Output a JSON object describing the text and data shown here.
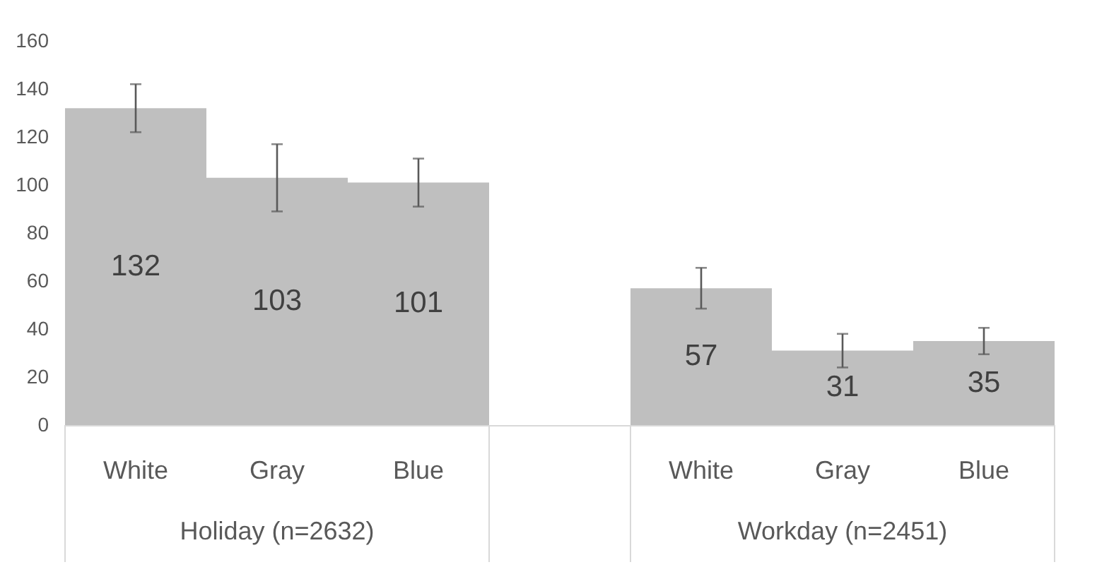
{
  "chart_data": {
    "type": "bar",
    "categories": [
      "White",
      "Gray",
      "Blue",
      null,
      "White",
      "Gray",
      "Blue"
    ],
    "values": [
      132,
      103,
      101,
      null,
      57,
      31,
      35
    ],
    "errors": [
      10,
      14,
      10,
      null,
      8.5,
      7,
      5.5
    ],
    "color": "#bfbfbf",
    "ylim": [
      0,
      160
    ],
    "yticks": [
      0,
      20,
      40,
      60,
      80,
      100,
      120,
      140,
      160
    ],
    "grid": false,
    "data_labels": true,
    "annotations": [
      "Holiday (n=2632)",
      "Workday (n=2451)"
    ]
  }
}
